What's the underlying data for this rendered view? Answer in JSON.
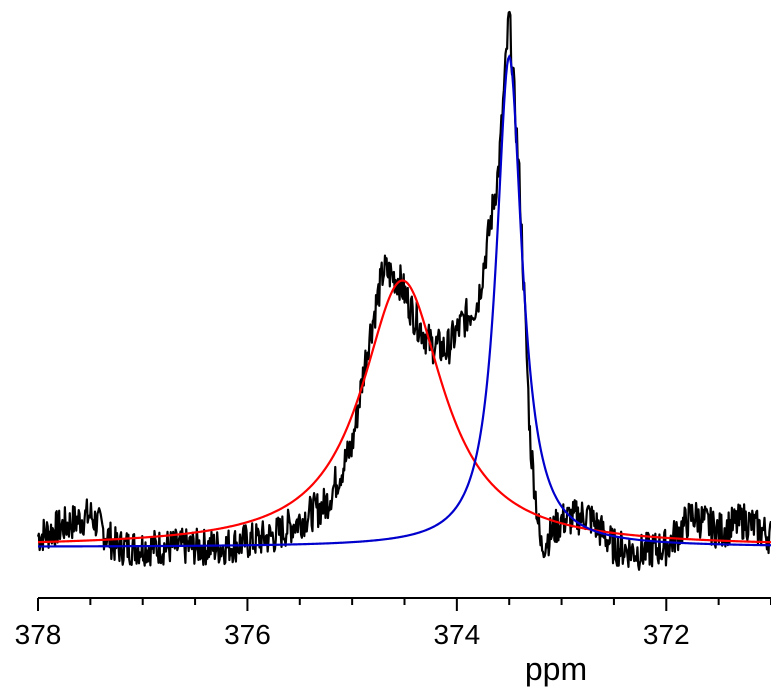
{
  "chart_data": {
    "type": "line",
    "title": "",
    "xlabel": "ppm",
    "ylabel": "",
    "xlim": [
      378,
      371
    ],
    "x_reversed": true,
    "x_ticks": [
      {
        "value": 378,
        "label": "378"
      },
      {
        "value": 376,
        "label": "376"
      },
      {
        "value": 374,
        "label": "374"
      },
      {
        "value": 372,
        "label": "372"
      }
    ],
    "x_minor_step": 0.5,
    "ylim": [
      0,
      1
    ],
    "grid": false,
    "legend": "none",
    "series": [
      {
        "color": "#000000",
        "style": "noisy-experimental-spectrum",
        "x": [
          378.0,
          377.75,
          377.5,
          377.25,
          377.0,
          376.75,
          376.5,
          376.25,
          376.0,
          375.75,
          375.5,
          375.25,
          375.0,
          374.85,
          374.7,
          374.55,
          374.4,
          374.25,
          374.1,
          373.95,
          373.8,
          373.7,
          373.6,
          373.5,
          373.4,
          373.3,
          373.2,
          373.0,
          372.75,
          372.5,
          372.25,
          372.0,
          371.75,
          371.5,
          371.25,
          371.0
        ],
        "y": [
          0.02,
          0.04,
          0.06,
          0.0,
          0.0,
          0.0,
          0.0,
          0.0,
          0.01,
          0.02,
          0.05,
          0.08,
          0.19,
          0.38,
          0.52,
          0.5,
          0.43,
          0.38,
          0.37,
          0.42,
          0.46,
          0.58,
          0.71,
          1.0,
          0.68,
          0.2,
          0.0,
          0.05,
          0.06,
          0.0,
          -0.01,
          0.0,
          0.06,
          0.03,
          0.05,
          0.02
        ]
      },
      {
        "color": "#ff0000",
        "style": "lorentzian-fit",
        "center": 374.52,
        "width": 0.95,
        "amplitude": 0.5
      },
      {
        "color": "#0000cc",
        "style": "lorentzian-fit",
        "center": 373.5,
        "width": 0.3,
        "amplitude": 0.92
      }
    ]
  }
}
